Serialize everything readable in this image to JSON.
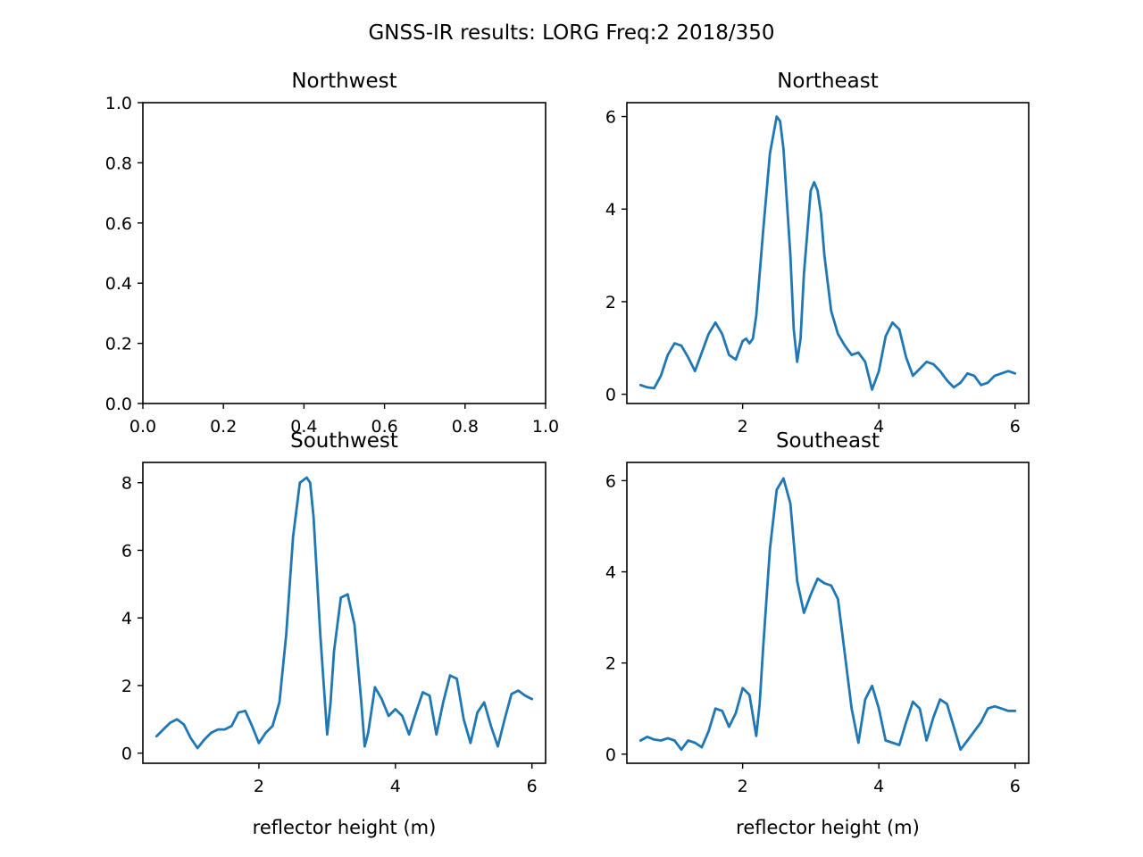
{
  "figure": {
    "title": "GNSS-IR results: LORG Freq:2 2018/350"
  },
  "colors": {
    "line": "#1f77b4",
    "axis": "#000000",
    "background": "#ffffff"
  },
  "chart_data": [
    {
      "type": "line",
      "title": "Northwest",
      "xlabel": "",
      "ylabel": "",
      "xlim": [
        0,
        1
      ],
      "ylim": [
        0,
        1
      ],
      "xticks": [
        "0.0",
        "0.2",
        "0.4",
        "0.6",
        "0.8",
        "1.0"
      ],
      "yticks": [
        "0.0",
        "0.2",
        "0.4",
        "0.6",
        "0.8",
        "1.0"
      ],
      "xtick_values": [
        0,
        0.2,
        0.4,
        0.6,
        0.8,
        1.0
      ],
      "ytick_values": [
        0,
        0.2,
        0.4,
        0.6,
        0.8,
        1.0
      ],
      "grid": false,
      "series": []
    },
    {
      "type": "line",
      "title": "Northeast",
      "xlabel": "",
      "ylabel": "",
      "xlim": [
        0.3,
        6.2
      ],
      "ylim": [
        -0.2,
        6.3
      ],
      "xticks": [
        "2",
        "4",
        "6"
      ],
      "yticks": [
        "0",
        "2",
        "4",
        "6"
      ],
      "xtick_values": [
        2,
        4,
        6
      ],
      "ytick_values": [
        0,
        2,
        4,
        6
      ],
      "grid": false,
      "series": [
        {
          "x": [
            0.5,
            0.6,
            0.7,
            0.8,
            0.9,
            1.0,
            1.1,
            1.2,
            1.3,
            1.4,
            1.5,
            1.6,
            1.7,
            1.8,
            1.9,
            2.0,
            2.05,
            2.1,
            2.15,
            2.2,
            2.3,
            2.4,
            2.5,
            2.55,
            2.6,
            2.7,
            2.75,
            2.8,
            2.85,
            2.9,
            3.0,
            3.05,
            3.1,
            3.15,
            3.2,
            3.3,
            3.4,
            3.5,
            3.6,
            3.7,
            3.8,
            3.9,
            4.0,
            4.1,
            4.2,
            4.3,
            4.4,
            4.5,
            4.6,
            4.7,
            4.8,
            4.9,
            5.0,
            5.1,
            5.2,
            5.3,
            5.4,
            5.5,
            5.6,
            5.7,
            5.8,
            5.9,
            6.0
          ],
          "y": [
            0.2,
            0.15,
            0.13,
            0.4,
            0.85,
            1.1,
            1.05,
            0.8,
            0.5,
            0.9,
            1.3,
            1.55,
            1.3,
            0.85,
            0.75,
            1.15,
            1.2,
            1.1,
            1.2,
            1.7,
            3.5,
            5.2,
            6.0,
            5.9,
            5.3,
            3.0,
            1.4,
            0.7,
            1.2,
            2.6,
            4.4,
            4.58,
            4.4,
            3.9,
            3.0,
            1.8,
            1.3,
            1.05,
            0.85,
            0.9,
            0.7,
            0.1,
            0.5,
            1.25,
            1.55,
            1.4,
            0.8,
            0.4,
            0.55,
            0.7,
            0.65,
            0.5,
            0.3,
            0.15,
            0.25,
            0.45,
            0.4,
            0.2,
            0.25,
            0.4,
            0.45,
            0.5,
            0.45
          ]
        }
      ]
    },
    {
      "type": "line",
      "title": "Southwest",
      "xlabel": "reflector height (m)",
      "ylabel": "",
      "xlim": [
        0.3,
        6.2
      ],
      "ylim": [
        -0.3,
        8.6
      ],
      "xticks": [
        "2",
        "4",
        "6"
      ],
      "yticks": [
        "0",
        "2",
        "4",
        "6",
        "8"
      ],
      "xtick_values": [
        2,
        4,
        6
      ],
      "ytick_values": [
        0,
        2,
        4,
        6,
        8
      ],
      "grid": false,
      "series": [
        {
          "x": [
            0.5,
            0.6,
            0.7,
            0.8,
            0.9,
            1.0,
            1.1,
            1.2,
            1.3,
            1.4,
            1.5,
            1.6,
            1.7,
            1.8,
            1.9,
            2.0,
            2.1,
            2.2,
            2.3,
            2.4,
            2.5,
            2.6,
            2.7,
            2.75,
            2.8,
            2.9,
            3.0,
            3.05,
            3.1,
            3.2,
            3.3,
            3.4,
            3.5,
            3.55,
            3.6,
            3.7,
            3.8,
            3.9,
            4.0,
            4.1,
            4.2,
            4.3,
            4.4,
            4.5,
            4.6,
            4.7,
            4.8,
            4.9,
            5.0,
            5.1,
            5.2,
            5.3,
            5.4,
            5.5,
            5.6,
            5.7,
            5.8,
            5.9,
            6.0
          ],
          "y": [
            0.5,
            0.7,
            0.9,
            1.0,
            0.85,
            0.45,
            0.15,
            0.4,
            0.6,
            0.7,
            0.7,
            0.8,
            1.2,
            1.25,
            0.8,
            0.3,
            0.6,
            0.8,
            1.5,
            3.5,
            6.4,
            8.0,
            8.15,
            8.0,
            7.0,
            3.5,
            0.55,
            1.5,
            3.0,
            4.6,
            4.7,
            3.8,
            1.5,
            0.2,
            0.6,
            1.95,
            1.6,
            1.1,
            1.3,
            1.1,
            0.55,
            1.2,
            1.8,
            1.7,
            0.55,
            1.5,
            2.3,
            2.2,
            1.0,
            0.3,
            1.2,
            1.5,
            0.8,
            0.2,
            1.0,
            1.75,
            1.85,
            1.7,
            1.6
          ]
        }
      ]
    },
    {
      "type": "line",
      "title": "Southeast",
      "xlabel": "reflector height (m)",
      "ylabel": "",
      "xlim": [
        0.3,
        6.2
      ],
      "ylim": [
        -0.2,
        6.4
      ],
      "xticks": [
        "2",
        "4",
        "6"
      ],
      "yticks": [
        "0",
        "2",
        "4",
        "6"
      ],
      "xtick_values": [
        2,
        4,
        6
      ],
      "ytick_values": [
        0,
        2,
        4,
        6
      ],
      "grid": false,
      "series": [
        {
          "x": [
            0.5,
            0.6,
            0.7,
            0.8,
            0.9,
            1.0,
            1.1,
            1.2,
            1.3,
            1.4,
            1.5,
            1.6,
            1.7,
            1.8,
            1.9,
            2.0,
            2.1,
            2.2,
            2.25,
            2.3,
            2.4,
            2.5,
            2.6,
            2.7,
            2.8,
            2.9,
            3.0,
            3.1,
            3.2,
            3.3,
            3.4,
            3.5,
            3.6,
            3.7,
            3.8,
            3.9,
            4.0,
            4.1,
            4.2,
            4.3,
            4.4,
            4.5,
            4.6,
            4.7,
            4.8,
            4.9,
            5.0,
            5.1,
            5.2,
            5.3,
            5.4,
            5.5,
            5.6,
            5.7,
            5.8,
            5.9,
            6.0
          ],
          "y": [
            0.3,
            0.38,
            0.32,
            0.3,
            0.35,
            0.3,
            0.1,
            0.3,
            0.25,
            0.15,
            0.5,
            1.0,
            0.95,
            0.6,
            0.9,
            1.45,
            1.3,
            0.4,
            1.1,
            2.3,
            4.5,
            5.8,
            6.05,
            5.5,
            3.8,
            3.1,
            3.5,
            3.85,
            3.75,
            3.7,
            3.4,
            2.2,
            1.0,
            0.25,
            1.2,
            1.5,
            1.0,
            0.3,
            0.25,
            0.2,
            0.7,
            1.15,
            1.0,
            0.3,
            0.8,
            1.2,
            1.1,
            0.6,
            0.1,
            0.3,
            0.5,
            0.7,
            1.0,
            1.05,
            1.0,
            0.95,
            0.95
          ]
        }
      ]
    }
  ]
}
